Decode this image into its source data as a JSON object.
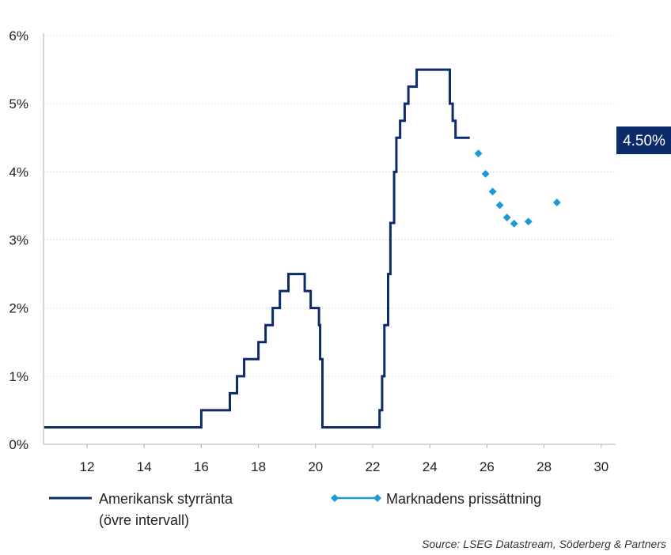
{
  "chart_data": {
    "type": "line",
    "title": "",
    "xlabel": "",
    "ylabel": "",
    "xlim": [
      10.5,
      30.5
    ],
    "ylim": [
      0,
      6
    ],
    "x_ticks": [
      12,
      14,
      16,
      18,
      20,
      22,
      24,
      26,
      28,
      30
    ],
    "x_tick_labels": [
      "12",
      "14",
      "16",
      "18",
      "20",
      "22",
      "24",
      "26",
      "28",
      "30"
    ],
    "y_ticks": [
      0,
      1,
      2,
      3,
      4,
      5,
      6
    ],
    "y_tick_labels": [
      "0%",
      "1%",
      "2%",
      "3%",
      "4%",
      "5%",
      "6%"
    ],
    "grid": "horizontal-dotted",
    "legend_position": "bottom",
    "colors": {
      "policy": "#0d2b6b",
      "market": "#1a9bd7",
      "badge": "#0d2b6b"
    },
    "series": [
      {
        "name": "Amerikansk styrränta",
        "name_line2": "(övre intervall)",
        "kind": "step",
        "x": [
          10.5,
          15.96,
          16.0,
          16.96,
          17.0,
          17.21,
          17.25,
          17.46,
          17.5,
          17.96,
          18.0,
          18.21,
          18.25,
          18.46,
          18.5,
          18.71,
          18.75,
          19.05,
          19.58,
          19.62,
          19.83,
          20.12,
          20.16,
          20.24,
          22.2,
          22.24,
          22.33,
          22.41,
          22.54,
          22.62,
          22.75,
          22.83,
          22.96,
          23.12,
          23.25,
          23.33,
          23.54,
          23.62,
          24.7,
          24.8,
          24.9,
          25.0,
          25.4
        ],
        "y": [
          0.25,
          0.25,
          0.5,
          0.5,
          0.75,
          0.75,
          1.0,
          1.0,
          1.25,
          1.25,
          1.5,
          1.5,
          1.75,
          1.75,
          2.0,
          2.0,
          2.25,
          2.5,
          2.5,
          2.25,
          2.0,
          1.75,
          1.25,
          0.25,
          0.25,
          0.5,
          1.0,
          1.75,
          2.5,
          3.25,
          4.0,
          4.5,
          4.75,
          5.0,
          5.25,
          5.25,
          5.5,
          5.5,
          5.0,
          4.75,
          4.5,
          4.5,
          4.5
        ]
      },
      {
        "name": "Marknadens prissättning",
        "kind": "markers",
        "x": [
          25.7,
          25.95,
          26.2,
          26.45,
          26.7,
          26.95,
          27.45,
          28.45
        ],
        "y": [
          4.27,
          3.97,
          3.71,
          3.51,
          3.33,
          3.24,
          3.27,
          3.55
        ]
      }
    ],
    "badge_text": "4.50%"
  },
  "source_text": "Source: LSEG Datastream, Söderberg & Partners"
}
